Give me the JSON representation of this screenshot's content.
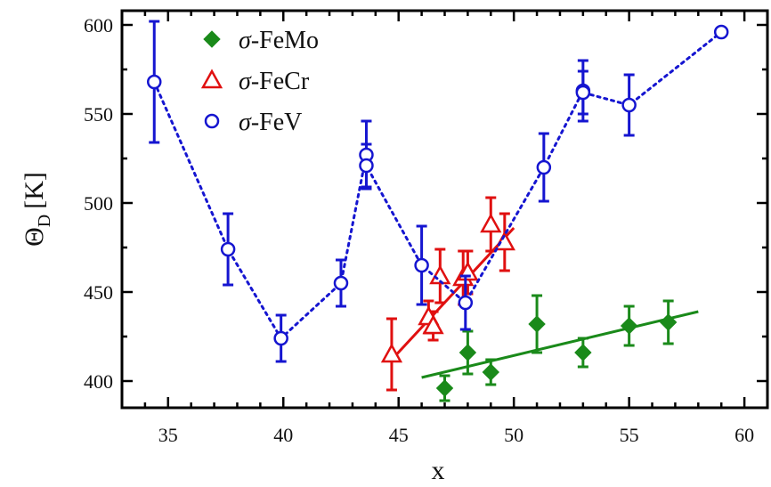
{
  "chart_data": {
    "type": "scatter",
    "xlabel": "x",
    "ylabel": "Θ",
    "ylabel_sub": "D",
    "ylabel_unit": "[K]",
    "xlim": [
      33,
      61
    ],
    "ylim": [
      385,
      608
    ],
    "x_ticks": [
      35,
      40,
      45,
      50,
      55,
      60
    ],
    "y_ticks": [
      400,
      450,
      500,
      550,
      600
    ],
    "grid": false,
    "legend_position": "top-left",
    "series": [
      {
        "name": "σ-FeMo",
        "color": "#1a8a1a",
        "marker": "diamond",
        "points": [
          {
            "x": 47.0,
            "y": 396,
            "err": 7
          },
          {
            "x": 48.0,
            "y": 416,
            "err": 12
          },
          {
            "x": 49.0,
            "y": 405,
            "err": 7
          },
          {
            "x": 51.0,
            "y": 432,
            "err": 16
          },
          {
            "x": 53.0,
            "y": 416,
            "err": 8
          },
          {
            "x": 55.0,
            "y": 431,
            "err": 11
          },
          {
            "x": 56.7,
            "y": 433,
            "err": 12
          }
        ],
        "fit": {
          "style": "solid",
          "x": [
            46.0,
            58.0
          ],
          "y": [
            402,
            439
          ]
        }
      },
      {
        "name": "σ-FeCr",
        "color": "#e01010",
        "marker": "triangle",
        "points": [
          {
            "x": 44.7,
            "y": 415,
            "err": 20
          },
          {
            "x": 46.3,
            "y": 436,
            "err": 9
          },
          {
            "x": 46.5,
            "y": 431,
            "err": 8
          },
          {
            "x": 46.8,
            "y": 459,
            "err": 15
          },
          {
            "x": 47.8,
            "y": 458,
            "err": 15
          },
          {
            "x": 48.0,
            "y": 461,
            "err": 12
          },
          {
            "x": 49.0,
            "y": 488,
            "err": 15
          },
          {
            "x": 49.6,
            "y": 478,
            "err": 16
          }
        ],
        "fit": {
          "style": "solid",
          "x": [
            44.7,
            50.0
          ],
          "y": [
            412,
            486
          ]
        }
      },
      {
        "name": "σ-FeV",
        "color": "#1515d0",
        "marker": "circle",
        "points": [
          {
            "x": 34.4,
            "y": 568,
            "err": 34
          },
          {
            "x": 37.6,
            "y": 474,
            "err": 20
          },
          {
            "x": 39.9,
            "y": 424,
            "err": 13
          },
          {
            "x": 42.5,
            "y": 455,
            "err": 13
          },
          {
            "x": 43.6,
            "y": 527,
            "err": 19
          },
          {
            "x": 43.6,
            "y": 521,
            "err": 12
          },
          {
            "x": 46.0,
            "y": 465,
            "err": 22
          },
          {
            "x": 47.9,
            "y": 444,
            "err": 15
          },
          {
            "x": 51.3,
            "y": 520,
            "err": 19
          },
          {
            "x": 53.0,
            "y": 563,
            "err": 17
          },
          {
            "x": 53.0,
            "y": 562,
            "err": 12
          },
          {
            "x": 55.0,
            "y": 555,
            "err": 17
          },
          {
            "x": 59.0,
            "y": 596,
            "err": 0
          }
        ],
        "fit": {
          "style": "dotted"
        }
      }
    ]
  }
}
